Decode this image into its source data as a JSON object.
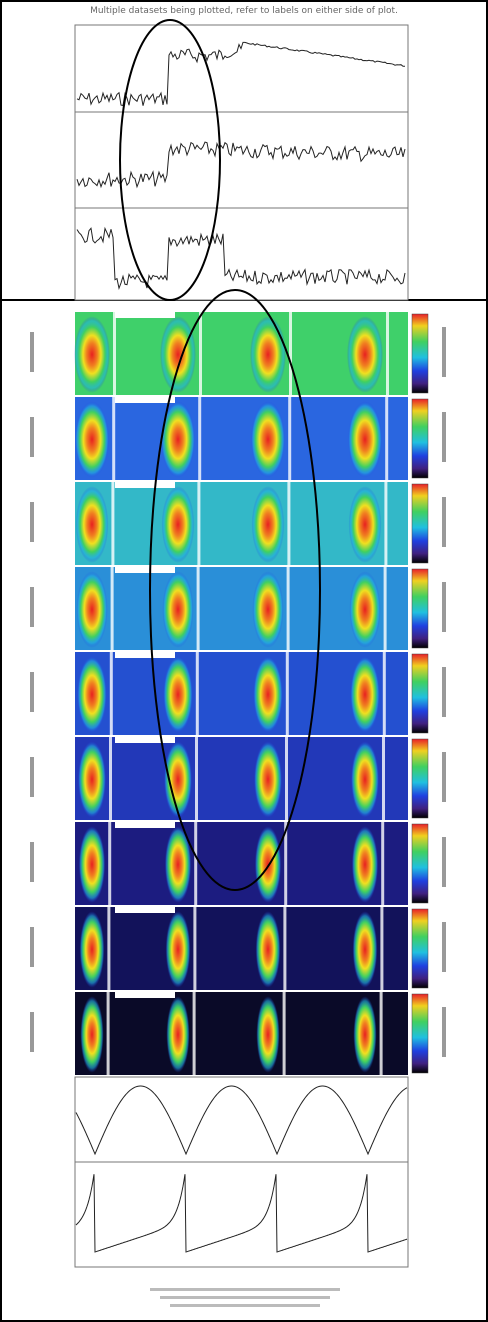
{
  "header": {
    "title": "Multiple datasets being plotted, refer to labels on either side of plot."
  }
}
